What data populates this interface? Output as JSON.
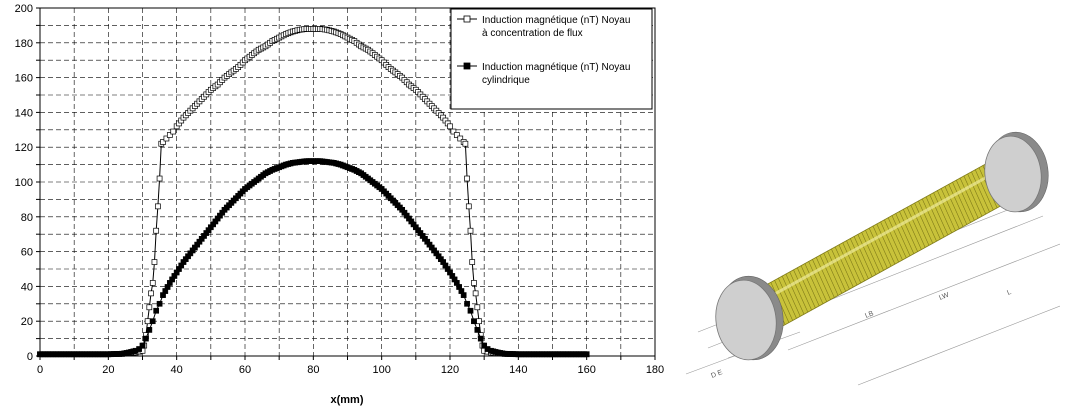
{
  "chart_data": {
    "type": "line",
    "xlabel": "x(mm)",
    "ylabel": "",
    "xlim": [
      0,
      180
    ],
    "ylim": [
      0,
      200
    ],
    "xticks": [
      0,
      20,
      40,
      60,
      80,
      100,
      120,
      140,
      160,
      180
    ],
    "yticks": [
      0,
      20,
      40,
      60,
      80,
      100,
      120,
      140,
      160,
      180,
      200
    ],
    "grid": true,
    "legend_position": "top-right",
    "series": [
      {
        "name_lines": [
          "Induction magnétique (nT) Noyau",
          "à concentration de flux"
        ],
        "marker": "open-square",
        "color": "#000000",
        "points": [
          [
            0,
            1
          ],
          [
            10,
            1
          ],
          [
            20,
            1
          ],
          [
            24,
            1.2
          ],
          [
            26,
            1.6
          ],
          [
            28,
            2
          ],
          [
            29,
            2.5
          ],
          [
            30,
            3
          ],
          [
            30.5,
            6
          ],
          [
            31,
            12
          ],
          [
            31.5,
            20
          ],
          [
            32,
            28
          ],
          [
            32.5,
            36
          ],
          [
            33,
            42
          ],
          [
            33.5,
            54
          ],
          [
            34,
            72
          ],
          [
            34.5,
            86
          ],
          [
            35,
            102
          ],
          [
            35.5,
            122
          ],
          [
            36,
            123
          ],
          [
            37,
            125
          ],
          [
            38,
            127
          ],
          [
            39,
            129
          ],
          [
            40,
            132
          ],
          [
            42,
            137
          ],
          [
            44,
            141
          ],
          [
            46,
            145
          ],
          [
            48,
            149
          ],
          [
            50,
            153
          ],
          [
            52,
            156
          ],
          [
            54,
            160
          ],
          [
            56,
            163
          ],
          [
            58,
            166
          ],
          [
            60,
            170
          ],
          [
            62,
            173
          ],
          [
            64,
            176
          ],
          [
            66,
            178
          ],
          [
            68,
            181
          ],
          [
            70,
            183
          ],
          [
            72,
            185
          ],
          [
            74,
            186.5
          ],
          [
            76,
            187.5
          ],
          [
            78,
            188
          ],
          [
            80,
            188
          ],
          [
            82,
            188
          ],
          [
            84,
            187.5
          ],
          [
            86,
            186.5
          ],
          [
            88,
            185
          ],
          [
            90,
            183
          ],
          [
            92,
            181
          ],
          [
            94,
            178
          ],
          [
            96,
            176
          ],
          [
            98,
            173
          ],
          [
            100,
            170
          ],
          [
            102,
            166
          ],
          [
            104,
            163
          ],
          [
            106,
            160
          ],
          [
            108,
            156
          ],
          [
            110,
            153
          ],
          [
            112,
            149
          ],
          [
            114,
            145
          ],
          [
            116,
            141
          ],
          [
            118,
            137
          ],
          [
            120,
            132
          ],
          [
            121,
            129
          ],
          [
            122,
            127
          ],
          [
            123,
            125
          ],
          [
            124,
            123
          ],
          [
            124.5,
            122
          ],
          [
            125,
            102
          ],
          [
            125.5,
            86
          ],
          [
            126,
            72
          ],
          [
            126.5,
            54
          ],
          [
            127,
            42
          ],
          [
            127.5,
            36
          ],
          [
            128,
            28
          ],
          [
            128.5,
            20
          ],
          [
            129,
            12
          ],
          [
            129.5,
            6
          ],
          [
            130,
            3
          ],
          [
            131,
            2.5
          ],
          [
            132,
            2
          ],
          [
            134,
            1.6
          ],
          [
            136,
            1.2
          ],
          [
            140,
            1
          ],
          [
            150,
            1
          ],
          [
            160,
            1
          ]
        ]
      },
      {
        "name_lines": [
          "Induction magnétique (nT) Noyau",
          "cylindrique"
        ],
        "marker": "filled-square",
        "color": "#000000",
        "points": [
          [
            0,
            1
          ],
          [
            10,
            1
          ],
          [
            20,
            1
          ],
          [
            24,
            1.3
          ],
          [
            26,
            2
          ],
          [
            28,
            3
          ],
          [
            29,
            4
          ],
          [
            30,
            6
          ],
          [
            31,
            10
          ],
          [
            32,
            15
          ],
          [
            33,
            20
          ],
          [
            34,
            26
          ],
          [
            35,
            30
          ],
          [
            36,
            35
          ],
          [
            38,
            42
          ],
          [
            40,
            48
          ],
          [
            42,
            54
          ],
          [
            44,
            59
          ],
          [
            46,
            64
          ],
          [
            48,
            69
          ],
          [
            50,
            74
          ],
          [
            52,
            79
          ],
          [
            54,
            84
          ],
          [
            56,
            88
          ],
          [
            58,
            92
          ],
          [
            60,
            96
          ],
          [
            62,
            99
          ],
          [
            64,
            102
          ],
          [
            66,
            105
          ],
          [
            68,
            107
          ],
          [
            70,
            108.5
          ],
          [
            72,
            110
          ],
          [
            74,
            111
          ],
          [
            76,
            111.5
          ],
          [
            78,
            112
          ],
          [
            80,
            112
          ],
          [
            82,
            112
          ],
          [
            84,
            111.5
          ],
          [
            86,
            111
          ],
          [
            88,
            110
          ],
          [
            90,
            108.5
          ],
          [
            92,
            107
          ],
          [
            94,
            105
          ],
          [
            96,
            102
          ],
          [
            98,
            99
          ],
          [
            100,
            96
          ],
          [
            102,
            92
          ],
          [
            104,
            88
          ],
          [
            106,
            84
          ],
          [
            108,
            79
          ],
          [
            110,
            74
          ],
          [
            112,
            69
          ],
          [
            114,
            64
          ],
          [
            116,
            59
          ],
          [
            118,
            54
          ],
          [
            120,
            48
          ],
          [
            122,
            42
          ],
          [
            124,
            35
          ],
          [
            125,
            30
          ],
          [
            126,
            26
          ],
          [
            127,
            20
          ],
          [
            128,
            15
          ],
          [
            129,
            10
          ],
          [
            130,
            6
          ],
          [
            131,
            4
          ],
          [
            132,
            3
          ],
          [
            134,
            2
          ],
          [
            136,
            1.3
          ],
          [
            140,
            1
          ],
          [
            150,
            1
          ],
          [
            160,
            1
          ]
        ]
      }
    ]
  },
  "illustration": {
    "dimension_labels": [
      "LW",
      "L",
      "LB",
      "D E"
    ],
    "colors": {
      "coil": "#c8c23a",
      "coil_dark": "#7f7a18",
      "flange": "#cfcfcf",
      "flange_dark": "#8a8a8a"
    }
  }
}
